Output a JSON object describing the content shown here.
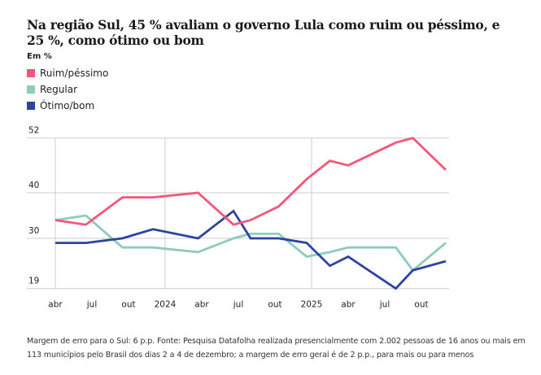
{
  "title": "Na região Sul, 45 % avaliam o governo Lula como ruim ou péssimo, e 25 %, como ótimo ou bom",
  "unit_label": "Em %",
  "note": "Margem de erro para o Sul: 6 p.p. Fonte: Pesquisa Datafolha realizada presencialmente com 2.002 pessoas de 16 anos ou mais em 113 municípios pelo Brasil dos dias 2 a 4 de dezembro; a margem de erro geral é de 2 p.p., para mais ou para menos",
  "chart_data": {
    "type": "line",
    "title": "Na região Sul, 45 % avaliam o governo Lula como ruim ou péssimo, e 25 %, como ótimo ou bom",
    "ylabel": "Em %",
    "xlabel": "",
    "ylim": [
      19,
      52
    ],
    "yticks": [
      52,
      40,
      30,
      19
    ],
    "xtick_labels": [
      "abr",
      "jul",
      "out",
      "2024",
      "abr",
      "jul",
      "out",
      "2025",
      "abr",
      "jul",
      "out"
    ],
    "xtick_months": [
      0,
      3,
      6,
      9,
      12,
      15,
      18,
      21,
      24,
      27,
      30
    ],
    "x_unit": "months since abr 2023",
    "vertical_gridlines_months": [
      0,
      9,
      21
    ],
    "x": [
      0,
      2.5,
      5.5,
      8,
      11.7,
      14.6,
      16,
      18.3,
      20.6,
      22.5,
      24,
      27.9,
      29.3,
      32
    ],
    "series": [
      {
        "name": "Ruim/péssimo",
        "color": "#f2577a",
        "values": [
          34,
          33,
          39,
          39,
          40,
          33,
          34,
          37,
          43,
          47,
          46,
          51,
          52,
          45
        ]
      },
      {
        "name": "Regular",
        "color": "#8ecbbd",
        "values": [
          34,
          35,
          28,
          28,
          27,
          30,
          31,
          31,
          26,
          27,
          28,
          28,
          23,
          29
        ]
      },
      {
        "name": "Ótimo/bom",
        "color": "#2b44a0",
        "values": [
          29,
          29,
          30,
          32,
          30,
          36,
          30,
          30,
          29,
          24,
          26,
          19,
          23,
          25
        ]
      }
    ],
    "grid": true,
    "legend": "top-left"
  }
}
